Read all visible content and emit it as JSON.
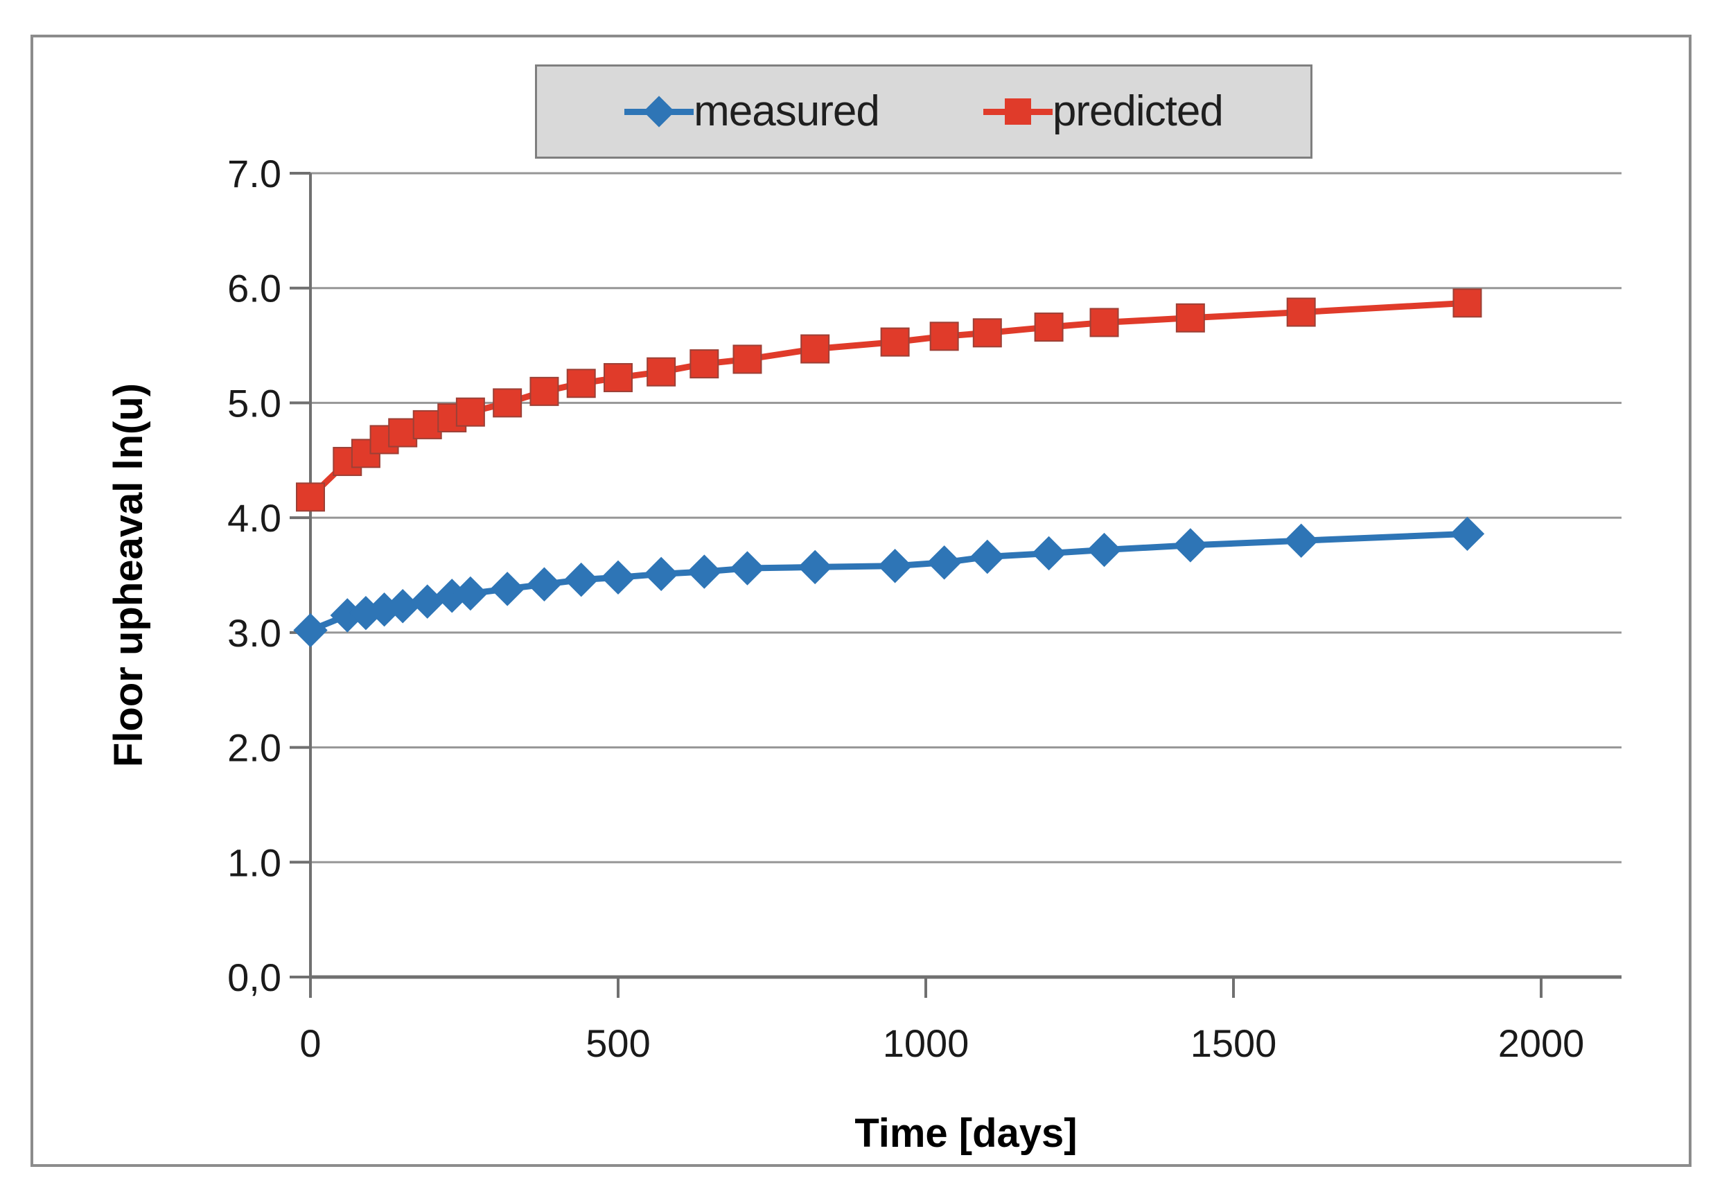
{
  "figure": {
    "background": "#ffffff",
    "frame_border_color": "#8c8c8c"
  },
  "legend": {
    "background": "#d9d9d9",
    "border_color": "#7f7f7f",
    "items": [
      {
        "label": "measured",
        "marker": "diamond",
        "color": "#2e75b6"
      },
      {
        "label": "predicted",
        "marker": "square",
        "color": "#e03b2a"
      }
    ]
  },
  "chart_data": {
    "type": "line",
    "title": "",
    "xlabel": "Time [days]",
    "ylabel": "Floor upheaval ln(u)",
    "xlim": [
      0,
      2130
    ],
    "ylim": [
      0,
      7
    ],
    "x_ticks": [
      0,
      500,
      1000,
      1500,
      2000
    ],
    "y_tick_labels": [
      "7.0",
      "6.0",
      "5.0",
      "4.0",
      "3.0",
      "2.0",
      "1.0",
      "0,0"
    ],
    "y_tick_values": [
      7,
      6,
      5,
      4,
      3,
      2,
      1,
      0
    ],
    "grid": "horizontal",
    "grid_color": "#969696",
    "axis_color": "#707070",
    "legend_position": "top-center",
    "x": [
      0,
      60,
      90,
      120,
      150,
      190,
      230,
      260,
      320,
      380,
      440,
      500,
      570,
      640,
      710,
      820,
      950,
      1030,
      1100,
      1200,
      1290,
      1430,
      1610,
      1880
    ],
    "series": [
      {
        "name": "measured",
        "color": "#2e75b6",
        "marker": "diamond",
        "values": [
          3.02,
          3.15,
          3.17,
          3.2,
          3.23,
          3.27,
          3.32,
          3.34,
          3.38,
          3.42,
          3.46,
          3.48,
          3.51,
          3.53,
          3.56,
          3.57,
          3.58,
          3.61,
          3.66,
          3.69,
          3.72,
          3.76,
          3.8,
          3.86
        ]
      },
      {
        "name": "predicted",
        "color": "#e03b2a",
        "marker": "square",
        "values": [
          4.18,
          4.49,
          4.56,
          4.68,
          4.74,
          4.81,
          4.87,
          4.92,
          5.0,
          5.1,
          5.17,
          5.22,
          5.27,
          5.34,
          5.38,
          5.47,
          5.53,
          5.58,
          5.61,
          5.66,
          5.7,
          5.74,
          5.79,
          5.87
        ]
      }
    ]
  }
}
